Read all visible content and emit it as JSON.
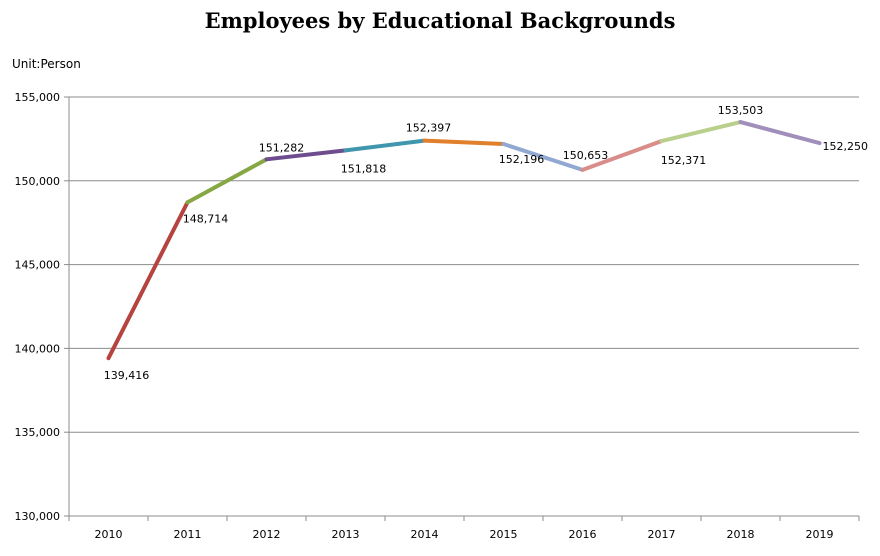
{
  "chart_data": {
    "type": "line",
    "title": "Employees by Educational Backgrounds",
    "unit_label": "Unit:Person",
    "xlabel": "",
    "ylabel": "",
    "categories": [
      "2010",
      "2011",
      "2012",
      "2013",
      "2014",
      "2015",
      "2016",
      "2017",
      "2018",
      "2019"
    ],
    "values": [
      139416,
      148714,
      151282,
      151818,
      152397,
      152196,
      150653,
      152371,
      153503,
      152250
    ],
    "data_labels": [
      "139,416",
      "148,714",
      "151,282",
      "151,818",
      "152,397",
      "152,196",
      "150,653",
      "152,371",
      "153,503",
      "152,250"
    ],
    "ylim": [
      130000,
      155000
    ],
    "yticks": [
      130000,
      135000,
      140000,
      145000,
      150000,
      155000
    ],
    "ytick_labels": [
      "130,000",
      "135,000",
      "140,000",
      "145,000",
      "150,000",
      "155,000"
    ],
    "grid": true,
    "segment_colors": [
      "#b5433f",
      "#86a844",
      "#6e4d8f",
      "#3f96ad",
      "#e07f2c",
      "#91a9d2",
      "#d98d8b",
      "#b9d08c",
      "#a08fbb"
    ],
    "label_placement": [
      "below",
      "below",
      "above",
      "below",
      "above",
      "below",
      "above",
      "below",
      "above",
      "right"
    ]
  }
}
